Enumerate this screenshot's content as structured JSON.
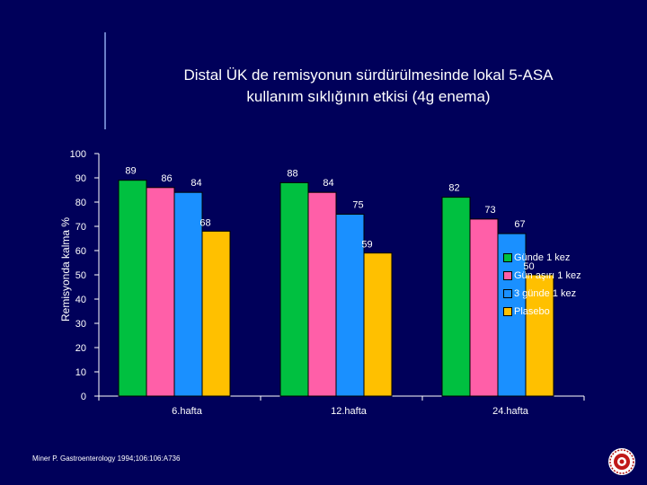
{
  "title_line1": "Distal ÜK de remisyonun sürdürülmesinde  lokal 5-ASA",
  "title_line2": "kullanım  sıklığının etkisi (4g enema)",
  "citation": "Miner P. Gastroenterology 1994;106:106:A736",
  "seal_label": "university-seal",
  "chart_data": {
    "type": "bar",
    "title": "Distal ÜK de remisyonun sürdürülmesinde  lokal 5-ASA kullanım  sıklığının etkisi (4g enema)",
    "ylabel": "Remisyonda  kalma   %",
    "xlabel": "",
    "ylim": [
      0,
      100
    ],
    "yticks": [
      0,
      10,
      20,
      30,
      40,
      50,
      60,
      70,
      80,
      90,
      100
    ],
    "grid": false,
    "legend_position": "right",
    "categories": [
      "6.hafta",
      "12.hafta",
      "24.hafta"
    ],
    "series": [
      {
        "name": "Günde 1 kez",
        "color": "#00c040",
        "values": [
          89,
          88,
          82
        ]
      },
      {
        "name": "Gün aşırı 1 kez",
        "color": "#ff5fa8",
        "values": [
          86,
          84,
          73
        ]
      },
      {
        "name": "3 günde 1 kez",
        "color": "#1a90ff",
        "values": [
          84,
          75,
          67
        ]
      },
      {
        "name": "Plasebo",
        "color": "#ffc000",
        "values": [
          68,
          59,
          50
        ]
      }
    ]
  }
}
